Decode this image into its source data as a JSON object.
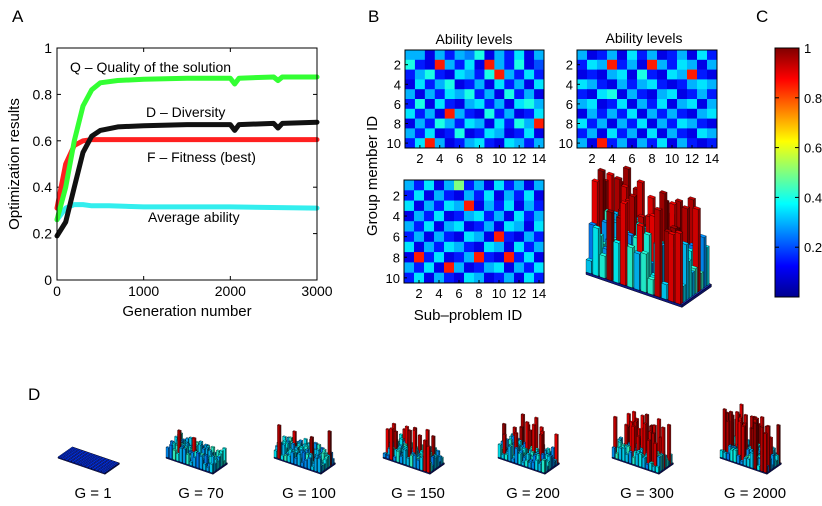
{
  "panel_labels": [
    "A",
    "B",
    "C",
    "D"
  ],
  "chart_data": [
    {
      "id": "A",
      "type": "line",
      "xlabel": "Generation number",
      "ylabel": "Optimization results",
      "xlim": [
        0,
        3000
      ],
      "ylim": [
        0,
        1
      ],
      "xticks": [
        0,
        1000,
        2000,
        3000
      ],
      "yticks": [
        0,
        0.2,
        0.4,
        0.6,
        0.8,
        1
      ],
      "ytick_labels": [
        "0",
        "0.2",
        "0.4",
        "0.6",
        "0.8",
        "1"
      ],
      "series": [
        {
          "name": "Q – Quality of the solution",
          "color": "#33ff33",
          "x": [
            0,
            100,
            200,
            300,
            400,
            500,
            700,
            1000,
            1500,
            2000,
            2050,
            2100,
            2500,
            2550,
            2600,
            3000
          ],
          "values": [
            0.26,
            0.4,
            0.6,
            0.75,
            0.82,
            0.85,
            0.86,
            0.865,
            0.87,
            0.87,
            0.845,
            0.87,
            0.875,
            0.86,
            0.875,
            0.875
          ]
        },
        {
          "name": "D – Diversity",
          "color": "#111111",
          "x": [
            0,
            100,
            200,
            300,
            400,
            500,
            700,
            1000,
            1500,
            2000,
            2050,
            2100,
            2500,
            2550,
            2600,
            3000
          ],
          "values": [
            0.19,
            0.25,
            0.4,
            0.55,
            0.62,
            0.645,
            0.66,
            0.665,
            0.67,
            0.67,
            0.645,
            0.67,
            0.675,
            0.655,
            0.675,
            0.68
          ]
        },
        {
          "name": "F – Fitness (best)",
          "color": "#ff2020",
          "x": [
            0,
            100,
            200,
            300,
            400,
            500,
            1000,
            2000,
            3000
          ],
          "values": [
            0.31,
            0.5,
            0.58,
            0.6,
            0.605,
            0.605,
            0.605,
            0.605,
            0.605
          ]
        },
        {
          "name": "Average ability",
          "color": "#33eeee",
          "x": [
            0,
            100,
            200,
            300,
            400,
            600,
            1000,
            2000,
            3000
          ],
          "values": [
            0.26,
            0.31,
            0.325,
            0.325,
            0.32,
            0.32,
            0.315,
            0.315,
            0.31
          ]
        }
      ]
    },
    {
      "id": "B-1",
      "type": "heatmap",
      "title": "Ability levels",
      "rows": 10,
      "cols": 14,
      "yticks": [
        2,
        4,
        6,
        8,
        10
      ],
      "xticks": [
        2,
        4,
        6,
        8,
        10,
        12,
        14
      ],
      "values": [
        [
          0.3,
          0.3,
          0.1,
          0.3,
          0.15,
          0.3,
          0.25,
          0.4,
          0.1,
          0.3,
          0.15,
          0.35,
          0.1,
          0.3
        ],
        [
          0.4,
          0.15,
          0.1,
          0.85,
          0.3,
          0.15,
          0.35,
          0.1,
          0.85,
          0.3,
          0.15,
          0.4,
          0.1,
          0.2
        ],
        [
          0.15,
          0.3,
          0.4,
          0.15,
          0.1,
          0.35,
          0.3,
          0.15,
          0.4,
          0.85,
          0.3,
          0.15,
          0.35,
          0.15
        ],
        [
          0.1,
          0.35,
          0.15,
          0.3,
          0.4,
          0.1,
          0.15,
          0.3,
          0.1,
          0.35,
          0.15,
          0.3,
          0.1,
          0.35
        ],
        [
          0.3,
          0.1,
          0.3,
          0.15,
          0.35,
          0.3,
          0.4,
          0.15,
          0.3,
          0.1,
          0.4,
          0.15,
          0.3,
          0.1
        ],
        [
          0.15,
          0.4,
          0.1,
          0.35,
          0.15,
          0.1,
          0.3,
          0.35,
          0.15,
          0.3,
          0.1,
          0.35,
          0.4,
          0.3
        ],
        [
          0.35,
          0.15,
          0.3,
          0.1,
          0.85,
          0.3,
          0.15,
          0.1,
          0.4,
          0.15,
          0.3,
          0.1,
          0.15,
          0.35
        ],
        [
          0.1,
          0.3,
          0.15,
          0.4,
          0.3,
          0.15,
          0.35,
          0.3,
          0.1,
          0.35,
          0.15,
          0.4,
          0.3,
          0.85
        ],
        [
          0.3,
          0.15,
          0.35,
          0.1,
          0.15,
          0.4,
          0.1,
          0.15,
          0.35,
          0.3,
          0.1,
          0.15,
          0.35,
          0.1
        ],
        [
          0.15,
          0.35,
          0.85,
          0.3,
          0.1,
          0.15,
          0.3,
          0.35,
          0.15,
          0.1,
          0.35,
          0.3,
          0.15,
          0.3
        ]
      ]
    },
    {
      "id": "B-2",
      "type": "heatmap",
      "title": "Ability levels",
      "rows": 10,
      "cols": 14,
      "yticks": [
        2,
        4,
        6,
        8,
        10
      ],
      "xticks": [
        2,
        4,
        6,
        8,
        10,
        12,
        14
      ],
      "values": [
        [
          0.3,
          0.1,
          0.15,
          0.3,
          0.1,
          0.35,
          0.15,
          0.3,
          0.1,
          0.15,
          0.3,
          0.1,
          0.35,
          0.15
        ],
        [
          0.15,
          0.35,
          0.3,
          0.85,
          0.15,
          0.3,
          0.1,
          0.85,
          0.3,
          0.15,
          0.35,
          0.3,
          0.1,
          0.3
        ],
        [
          0.1,
          0.15,
          0.1,
          0.3,
          0.35,
          0.1,
          0.4,
          0.15,
          0.1,
          0.35,
          0.3,
          0.85,
          0.15,
          0.1
        ],
        [
          0.35,
          0.3,
          0.15,
          0.1,
          0.3,
          0.15,
          0.3,
          0.35,
          0.15,
          0.1,
          0.15,
          0.3,
          0.35,
          0.3
        ],
        [
          0.15,
          0.1,
          0.35,
          0.4,
          0.1,
          0.3,
          0.15,
          0.1,
          0.3,
          0.35,
          0.1,
          0.15,
          0.3,
          0.15
        ],
        [
          0.3,
          0.35,
          0.1,
          0.15,
          0.35,
          0.1,
          0.3,
          0.15,
          0.35,
          0.1,
          0.3,
          0.35,
          0.1,
          0.3
        ],
        [
          0.1,
          0.3,
          0.15,
          0.3,
          0.15,
          0.35,
          0.1,
          0.3,
          0.15,
          0.3,
          0.15,
          0.1,
          0.3,
          0.35
        ],
        [
          0.35,
          0.15,
          0.3,
          0.1,
          0.3,
          0.15,
          0.35,
          0.1,
          0.3,
          0.15,
          0.35,
          0.3,
          0.15,
          0.1
        ],
        [
          0.15,
          0.3,
          0.1,
          0.35,
          0.15,
          0.3,
          0.1,
          0.35,
          0.1,
          0.3,
          0.15,
          0.1,
          0.35,
          0.3
        ],
        [
          0.3,
          0.1,
          0.85,
          0.15,
          0.3,
          0.1,
          0.3,
          0.15,
          0.35,
          0.1,
          0.3,
          0.15,
          0.1,
          0.15
        ]
      ]
    },
    {
      "id": "B-3",
      "type": "heatmap",
      "xlabel": "Sub–problem ID",
      "ylabel": "Group member ID",
      "rows": 10,
      "cols": 14,
      "yticks": [
        2,
        4,
        6,
        8,
        10
      ],
      "xticks": [
        2,
        4,
        6,
        8,
        10,
        12,
        14
      ],
      "values": [
        [
          0.3,
          0.15,
          0.35,
          0.1,
          0.3,
          0.5,
          0.15,
          0.3,
          0.1,
          0.35,
          0.15,
          0.3,
          0.1,
          0.3
        ],
        [
          0.15,
          0.35,
          0.1,
          0.3,
          0.15,
          0.1,
          0.3,
          0.15,
          0.35,
          0.1,
          0.3,
          0.15,
          0.35,
          0.1
        ],
        [
          0.35,
          0.1,
          0.3,
          0.15,
          0.35,
          0.3,
          0.85,
          0.1,
          0.3,
          0.15,
          0.35,
          0.1,
          0.3,
          0.15
        ],
        [
          0.1,
          0.3,
          0.15,
          0.35,
          0.1,
          0.15,
          0.3,
          0.35,
          0.15,
          0.3,
          0.1,
          0.35,
          0.15,
          0.3
        ],
        [
          0.3,
          0.15,
          0.35,
          0.1,
          0.3,
          0.35,
          0.1,
          0.15,
          0.3,
          0.1,
          0.35,
          0.3,
          0.1,
          0.35
        ],
        [
          0.15,
          0.3,
          0.1,
          0.3,
          0.15,
          0.1,
          0.35,
          0.3,
          0.1,
          0.85,
          0.15,
          0.1,
          0.3,
          0.15
        ],
        [
          0.35,
          0.1,
          0.3,
          0.15,
          0.35,
          0.3,
          0.15,
          0.1,
          0.35,
          0.3,
          0.1,
          0.35,
          0.15,
          0.3
        ],
        [
          0.1,
          0.85,
          0.15,
          0.35,
          0.1,
          0.15,
          0.3,
          0.85,
          0.15,
          0.1,
          0.85,
          0.15,
          0.35,
          0.1
        ],
        [
          0.3,
          0.15,
          0.35,
          0.1,
          0.85,
          0.3,
          0.1,
          0.15,
          0.3,
          0.35,
          0.1,
          0.3,
          0.15,
          0.35
        ],
        [
          0.15,
          0.35,
          0.1,
          0.3,
          0.15,
          0.1,
          0.35,
          0.3,
          0.1,
          0.15,
          0.3,
          0.1,
          0.35,
          0.15
        ]
      ]
    },
    {
      "id": "C",
      "type": "colorbar",
      "ticks": [
        0.2,
        0.4,
        0.6,
        0.8,
        1
      ],
      "tick_labels": [
        "0.2",
        "0.4",
        "0.6",
        "0.8",
        "1"
      ],
      "range": [
        0,
        1
      ]
    },
    {
      "id": "D",
      "type": "bar3d-sequence",
      "labels": [
        "G = 1",
        "G = 70",
        "G = 100",
        "G = 150",
        "G = 200",
        "G = 300",
        "G = 2000"
      ],
      "tall_fraction": [
        0,
        0.02,
        0.04,
        0.1,
        0.14,
        0.2,
        0.24
      ]
    }
  ]
}
